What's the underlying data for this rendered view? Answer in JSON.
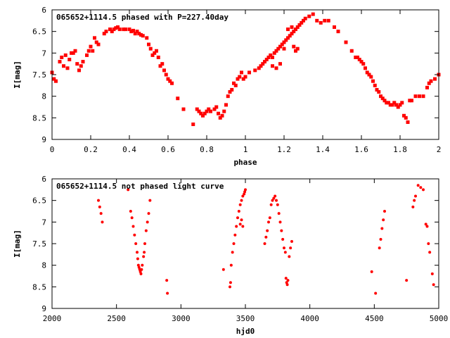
{
  "chart_data": [
    {
      "type": "scatter",
      "title": "065652+1114.5 phased with P=227.40day",
      "xlabel": "phase",
      "ylabel": "I[mag]",
      "xlim": [
        0,
        2
      ],
      "ylim": [
        6,
        9
      ],
      "y_inverted": true,
      "xticks": [
        "0",
        "0.2",
        "0.4",
        "0.6",
        "0.8",
        "1",
        "1.2",
        "1.4",
        "1.6",
        "1.8",
        "2"
      ],
      "yticks": [
        "6",
        "6.5",
        "7",
        "7.5",
        "8",
        "8.5",
        "9"
      ],
      "grid": false,
      "marker_color": "#ff0000",
      "series": [
        {
          "points": [
            [
              0.0,
              7.45
            ],
            [
              0.01,
              7.6
            ],
            [
              0.02,
              7.65
            ],
            [
              0.04,
              7.2
            ],
            [
              0.05,
              7.1
            ],
            [
              0.06,
              7.3
            ],
            [
              0.07,
              7.05
            ],
            [
              0.08,
              7.35
            ],
            [
              0.09,
              7.15
            ],
            [
              0.1,
              7.0
            ],
            [
              0.11,
              7.0
            ],
            [
              0.12,
              6.95
            ],
            [
              0.13,
              7.25
            ],
            [
              0.14,
              7.4
            ],
            [
              0.15,
              7.3
            ],
            [
              0.16,
              7.2
            ],
            [
              0.18,
              7.05
            ],
            [
              0.19,
              6.95
            ],
            [
              0.2,
              6.85
            ],
            [
              0.21,
              6.95
            ],
            [
              0.22,
              6.65
            ],
            [
              0.23,
              6.75
            ],
            [
              0.24,
              6.8
            ],
            [
              0.27,
              6.55
            ],
            [
              0.28,
              6.5
            ],
            [
              0.3,
              6.45
            ],
            [
              0.31,
              6.5
            ],
            [
              0.32,
              6.45
            ],
            [
              0.33,
              6.42
            ],
            [
              0.34,
              6.4
            ],
            [
              0.35,
              6.45
            ],
            [
              0.37,
              6.45
            ],
            [
              0.38,
              6.45
            ],
            [
              0.4,
              6.45
            ],
            [
              0.41,
              6.5
            ],
            [
              0.42,
              6.48
            ],
            [
              0.43,
              6.55
            ],
            [
              0.44,
              6.5
            ],
            [
              0.45,
              6.55
            ],
            [
              0.46,
              6.58
            ],
            [
              0.47,
              6.6
            ],
            [
              0.49,
              6.65
            ],
            [
              0.5,
              6.8
            ],
            [
              0.51,
              6.9
            ],
            [
              0.52,
              7.05
            ],
            [
              0.53,
              7.0
            ],
            [
              0.54,
              6.95
            ],
            [
              0.55,
              7.1
            ],
            [
              0.56,
              7.3
            ],
            [
              0.57,
              7.25
            ],
            [
              0.58,
              7.4
            ],
            [
              0.59,
              7.5
            ],
            [
              0.6,
              7.6
            ],
            [
              0.61,
              7.65
            ],
            [
              0.62,
              7.7
            ],
            [
              0.65,
              8.05
            ],
            [
              0.68,
              8.3
            ],
            [
              0.73,
              8.65
            ],
            [
              0.75,
              8.3
            ],
            [
              0.76,
              8.35
            ],
            [
              0.77,
              8.4
            ],
            [
              0.78,
              8.45
            ],
            [
              0.79,
              8.4
            ],
            [
              0.8,
              8.35
            ],
            [
              0.81,
              8.3
            ],
            [
              0.82,
              8.35
            ],
            [
              0.84,
              8.3
            ],
            [
              0.85,
              8.25
            ],
            [
              0.86,
              8.4
            ],
            [
              0.87,
              8.5
            ],
            [
              0.88,
              8.45
            ],
            [
              0.89,
              8.35
            ],
            [
              0.9,
              8.2
            ],
            [
              0.91,
              8.0
            ],
            [
              0.92,
              7.9
            ],
            [
              0.93,
              7.85
            ],
            [
              0.94,
              7.7
            ],
            [
              0.95,
              7.75
            ],
            [
              0.96,
              7.6
            ],
            [
              0.97,
              7.55
            ],
            [
              0.98,
              7.45
            ],
            [
              0.99,
              7.6
            ],
            [
              1.0,
              7.55
            ],
            [
              1.02,
              7.45
            ],
            [
              1.05,
              7.4
            ],
            [
              1.07,
              7.35
            ],
            [
              1.08,
              7.3
            ],
            [
              1.09,
              7.25
            ],
            [
              1.1,
              7.2
            ],
            [
              1.11,
              7.15
            ],
            [
              1.12,
              7.1
            ],
            [
              1.13,
              7.05
            ],
            [
              1.14,
              7.1
            ],
            [
              1.15,
              7.0
            ],
            [
              1.16,
              6.95
            ],
            [
              1.17,
              6.9
            ],
            [
              1.18,
              6.85
            ],
            [
              1.19,
              6.8
            ],
            [
              1.2,
              6.75
            ],
            [
              1.21,
              6.7
            ],
            [
              1.22,
              6.65
            ],
            [
              1.23,
              6.6
            ],
            [
              1.24,
              6.55
            ],
            [
              1.25,
              6.5
            ],
            [
              1.26,
              6.45
            ],
            [
              1.27,
              6.4
            ],
            [
              1.28,
              6.35
            ],
            [
              1.29,
              6.3
            ],
            [
              1.3,
              6.25
            ],
            [
              1.31,
              6.2
            ],
            [
              1.33,
              6.15
            ],
            [
              1.35,
              6.1
            ],
            [
              1.37,
              6.25
            ],
            [
              1.39,
              6.3
            ],
            [
              1.41,
              6.25
            ],
            [
              1.43,
              6.25
            ],
            [
              1.46,
              6.4
            ],
            [
              1.48,
              6.5
            ],
            [
              1.52,
              6.75
            ],
            [
              1.55,
              6.95
            ],
            [
              1.57,
              7.1
            ],
            [
              1.58,
              7.1
            ],
            [
              1.59,
              7.15
            ],
            [
              1.6,
              7.2
            ],
            [
              1.61,
              7.25
            ],
            [
              1.62,
              7.35
            ],
            [
              1.63,
              7.45
            ],
            [
              1.64,
              7.5
            ],
            [
              1.65,
              7.55
            ],
            [
              1.66,
              7.65
            ],
            [
              1.67,
              7.75
            ],
            [
              1.68,
              7.85
            ],
            [
              1.69,
              7.9
            ],
            [
              1.7,
              8.0
            ],
            [
              1.71,
              8.05
            ],
            [
              1.72,
              8.1
            ],
            [
              1.73,
              8.15
            ],
            [
              1.74,
              8.15
            ],
            [
              1.75,
              8.2
            ],
            [
              1.76,
              8.2
            ],
            [
              1.77,
              8.15
            ],
            [
              1.78,
              8.2
            ],
            [
              1.79,
              8.25
            ],
            [
              1.8,
              8.2
            ],
            [
              1.81,
              8.15
            ],
            [
              1.82,
              8.45
            ],
            [
              1.83,
              8.5
            ],
            [
              1.84,
              8.6
            ],
            [
              1.85,
              8.1
            ],
            [
              1.86,
              8.1
            ],
            [
              1.88,
              8.0
            ],
            [
              1.9,
              8.0
            ],
            [
              1.92,
              8.0
            ],
            [
              1.94,
              7.8
            ],
            [
              1.95,
              7.7
            ],
            [
              1.96,
              7.65
            ],
            [
              1.98,
              7.6
            ],
            [
              2.0,
              7.5
            ],
            [
              1.22,
              6.45
            ],
            [
              1.24,
              6.4
            ],
            [
              1.25,
              6.85
            ],
            [
              1.26,
              6.95
            ],
            [
              1.27,
              6.9
            ],
            [
              1.2,
              6.9
            ],
            [
              1.18,
              7.25
            ],
            [
              1.16,
              7.35
            ],
            [
              1.14,
              7.3
            ]
          ]
        }
      ]
    },
    {
      "type": "scatter",
      "title": "065652+1114.5 not phased light curve",
      "xlabel": "hjd0",
      "ylabel": "I[mag]",
      "xlim": [
        2000,
        5000
      ],
      "ylim": [
        6,
        9
      ],
      "y_inverted": true,
      "xticks": [
        "2000",
        "2500",
        "3000",
        "3500",
        "4000",
        "4500",
        "5000"
      ],
      "yticks": [
        "6",
        "6.5",
        "7",
        "7.5",
        "8",
        "8.5",
        "9"
      ],
      "grid": false,
      "marker_color": "#ff0000",
      "series": [
        {
          "points": [
            [
              2360,
              6.5
            ],
            [
              2370,
              6.65
            ],
            [
              2380,
              6.8
            ],
            [
              2390,
              7.0
            ],
            [
              2590,
              6.25
            ],
            [
              2610,
              6.75
            ],
            [
              2620,
              6.9
            ],
            [
              2630,
              7.1
            ],
            [
              2640,
              7.3
            ],
            [
              2650,
              7.5
            ],
            [
              2660,
              7.7
            ],
            [
              2665,
              7.85
            ],
            [
              2670,
              8.0
            ],
            [
              2675,
              8.05
            ],
            [
              2680,
              8.1
            ],
            [
              2685,
              8.15
            ],
            [
              2690,
              8.2
            ],
            [
              2695,
              8.1
            ],
            [
              2700,
              8.0
            ],
            [
              2710,
              7.8
            ],
            [
              2715,
              7.7
            ],
            [
              2720,
              7.5
            ],
            [
              2730,
              7.2
            ],
            [
              2740,
              7.0
            ],
            [
              2750,
              6.8
            ],
            [
              2760,
              6.5
            ],
            [
              2890,
              8.35
            ],
            [
              2895,
              8.65
            ],
            [
              3330,
              8.1
            ],
            [
              3380,
              8.5
            ],
            [
              3385,
              8.4
            ],
            [
              3390,
              8.0
            ],
            [
              3400,
              7.7
            ],
            [
              3410,
              7.5
            ],
            [
              3420,
              7.3
            ],
            [
              3430,
              7.1
            ],
            [
              3440,
              6.9
            ],
            [
              3450,
              6.75
            ],
            [
              3460,
              6.6
            ],
            [
              3470,
              6.5
            ],
            [
              3480,
              6.4
            ],
            [
              3490,
              6.35
            ],
            [
              3495,
              6.3
            ],
            [
              3500,
              6.25
            ],
            [
              3460,
              7.05
            ],
            [
              3470,
              6.95
            ],
            [
              3480,
              7.1
            ],
            [
              3650,
              7.5
            ],
            [
              3660,
              7.35
            ],
            [
              3670,
              7.2
            ],
            [
              3680,
              7.0
            ],
            [
              3690,
              6.9
            ],
            [
              3700,
              6.6
            ],
            [
              3710,
              6.5
            ],
            [
              3720,
              6.45
            ],
            [
              3730,
              6.4
            ],
            [
              3740,
              6.5
            ],
            [
              3750,
              6.6
            ],
            [
              3760,
              6.8
            ],
            [
              3770,
              7.0
            ],
            [
              3780,
              7.2
            ],
            [
              3790,
              7.4
            ],
            [
              3800,
              7.6
            ],
            [
              3810,
              7.7
            ],
            [
              3815,
              8.3
            ],
            [
              3820,
              8.4
            ],
            [
              3825,
              8.45
            ],
            [
              3830,
              8.35
            ],
            [
              3840,
              7.8
            ],
            [
              3850,
              7.6
            ],
            [
              3860,
              7.45
            ],
            [
              4480,
              8.15
            ],
            [
              4510,
              8.65
            ],
            [
              4540,
              7.6
            ],
            [
              4550,
              7.4
            ],
            [
              4560,
              7.15
            ],
            [
              4570,
              6.95
            ],
            [
              4580,
              6.75
            ],
            [
              4750,
              8.35
            ],
            [
              4800,
              6.65
            ],
            [
              4810,
              6.5
            ],
            [
              4820,
              6.4
            ],
            [
              4840,
              6.15
            ],
            [
              4860,
              6.2
            ],
            [
              4880,
              6.25
            ],
            [
              4900,
              7.05
            ],
            [
              4910,
              7.1
            ],
            [
              4920,
              7.5
            ],
            [
              4930,
              7.7
            ],
            [
              4950,
              8.2
            ],
            [
              4960,
              8.45
            ]
          ]
        }
      ]
    }
  ]
}
